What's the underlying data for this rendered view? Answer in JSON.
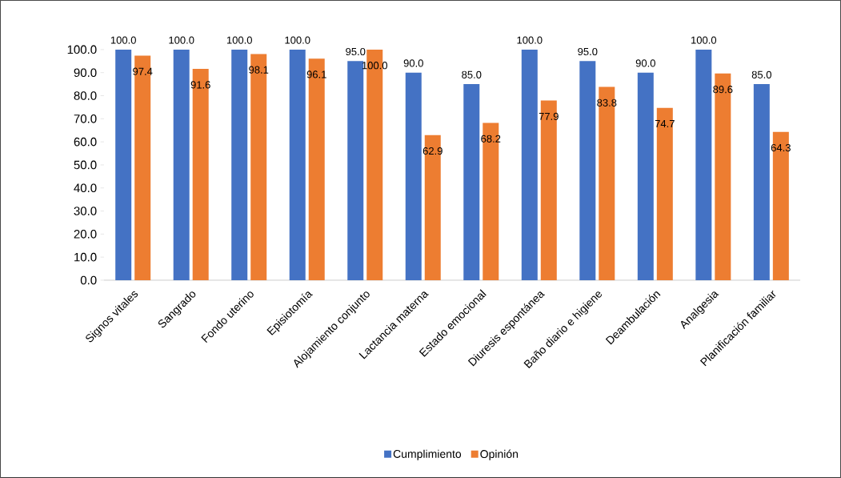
{
  "chart_data": {
    "type": "bar",
    "categories": [
      "Signos vitales",
      "Sangrado",
      "Fondo uterino",
      "Episiotomía",
      "Alojamiento conjunto",
      "Lactancia materna",
      "Estado emocional",
      "Diuresis espontánea",
      "Baño diario e higiene",
      "Deambulación",
      "Analgesia",
      "Planificación familiar"
    ],
    "series": [
      {
        "name": "Cumplimiento",
        "color": "#4472c4",
        "values": [
          100,
          100,
          100,
          100,
          95,
          90,
          85,
          100,
          95,
          90,
          100,
          85
        ],
        "value_labels": [
          "100.0",
          "100.0",
          "100.0",
          "100.0",
          "95.0",
          "90.0",
          "85.0",
          "100.0",
          "95.0",
          "90.0",
          "100.0",
          "85.0"
        ]
      },
      {
        "name": "Opinión",
        "color": "#ed7d31",
        "values": [
          97.4,
          91.6,
          98.1,
          96.1,
          100,
          62.9,
          68.2,
          77.9,
          83.8,
          74.7,
          89.6,
          64.3
        ],
        "value_labels": [
          "97.4",
          "91.6",
          "98.1",
          "96.1",
          "100.0",
          "62.9",
          "68.2",
          "77.9",
          "83.8",
          "74.7",
          "89.6",
          "64.3"
        ]
      }
    ],
    "ylim": [
      0,
      100
    ],
    "yticks": [
      {
        "value": 0,
        "label": "0.0"
      },
      {
        "value": 10,
        "label": "10.0"
      },
      {
        "value": 20,
        "label": "20.0"
      },
      {
        "value": 30,
        "label": "30.0"
      },
      {
        "value": 40,
        "label": "40.0"
      },
      {
        "value": 50,
        "label": "50.0"
      },
      {
        "value": 60,
        "label": "60.0"
      },
      {
        "value": 70,
        "label": "70.0"
      },
      {
        "value": 80,
        "label": "80.0"
      },
      {
        "value": 90,
        "label": "90.0"
      },
      {
        "value": 100,
        "label": "100.0"
      }
    ],
    "legend": "bottom"
  }
}
